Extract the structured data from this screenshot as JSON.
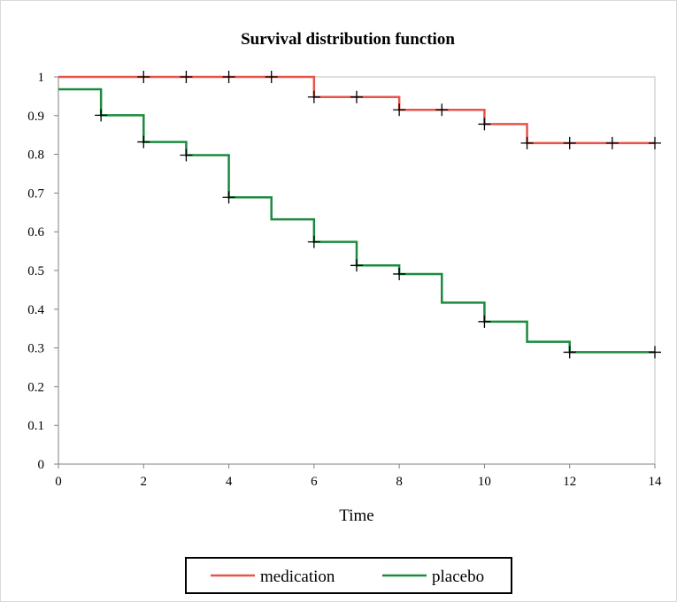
{
  "chart_data": {
    "type": "line",
    "step": true,
    "title": "Survival distribution function",
    "xlabel": "Time",
    "ylabel": "",
    "xlim": [
      0,
      14
    ],
    "ylim": [
      0,
      1
    ],
    "xticks": [
      0,
      2,
      4,
      6,
      8,
      10,
      12,
      14
    ],
    "yticks": [
      0,
      0.1,
      0.2,
      0.3,
      0.4,
      0.5,
      0.6,
      0.7,
      0.8,
      0.9,
      1
    ],
    "grid": false,
    "legend": {
      "position": "bottom"
    },
    "series": [
      {
        "name": "medication",
        "color": "#e8534a",
        "steps": [
          {
            "x": 0,
            "y": 1
          },
          {
            "x": 6,
            "y": 0.948
          },
          {
            "x": 8,
            "y": 0.915
          },
          {
            "x": 10,
            "y": 0.878
          },
          {
            "x": 11,
            "y": 0.829
          },
          {
            "x": 14,
            "y": 0.829
          }
        ],
        "censored": [
          {
            "x": 2,
            "y": 1
          },
          {
            "x": 3,
            "y": 1
          },
          {
            "x": 4,
            "y": 1
          },
          {
            "x": 5,
            "y": 1
          },
          {
            "x": 6,
            "y": 0.948
          },
          {
            "x": 7,
            "y": 0.948
          },
          {
            "x": 8,
            "y": 0.915
          },
          {
            "x": 9,
            "y": 0.915
          },
          {
            "x": 10,
            "y": 0.878
          },
          {
            "x": 11,
            "y": 0.829
          },
          {
            "x": 12,
            "y": 0.829
          },
          {
            "x": 13,
            "y": 0.829
          },
          {
            "x": 14,
            "y": 0.829
          }
        ]
      },
      {
        "name": "placebo",
        "color": "#1b8a3e",
        "steps": [
          {
            "x": 0,
            "y": 0.968
          },
          {
            "x": 1,
            "y": 0.901
          },
          {
            "x": 2,
            "y": 0.832
          },
          {
            "x": 3,
            "y": 0.798
          },
          {
            "x": 4,
            "y": 0.689
          },
          {
            "x": 5,
            "y": 0.632
          },
          {
            "x": 6,
            "y": 0.574
          },
          {
            "x": 7,
            "y": 0.513
          },
          {
            "x": 8,
            "y": 0.491
          },
          {
            "x": 9,
            "y": 0.417
          },
          {
            "x": 10,
            "y": 0.368
          },
          {
            "x": 11,
            "y": 0.316
          },
          {
            "x": 12,
            "y": 0.289
          },
          {
            "x": 14,
            "y": 0.289
          }
        ],
        "censored": [
          {
            "x": 1,
            "y": 0.901
          },
          {
            "x": 2,
            "y": 0.832
          },
          {
            "x": 3,
            "y": 0.798
          },
          {
            "x": 4,
            "y": 0.689
          },
          {
            "x": 6,
            "y": 0.574
          },
          {
            "x": 7,
            "y": 0.513
          },
          {
            "x": 8,
            "y": 0.491
          },
          {
            "x": 10,
            "y": 0.368
          },
          {
            "x": 12,
            "y": 0.289
          },
          {
            "x": 14,
            "y": 0.289
          }
        ]
      }
    ]
  }
}
